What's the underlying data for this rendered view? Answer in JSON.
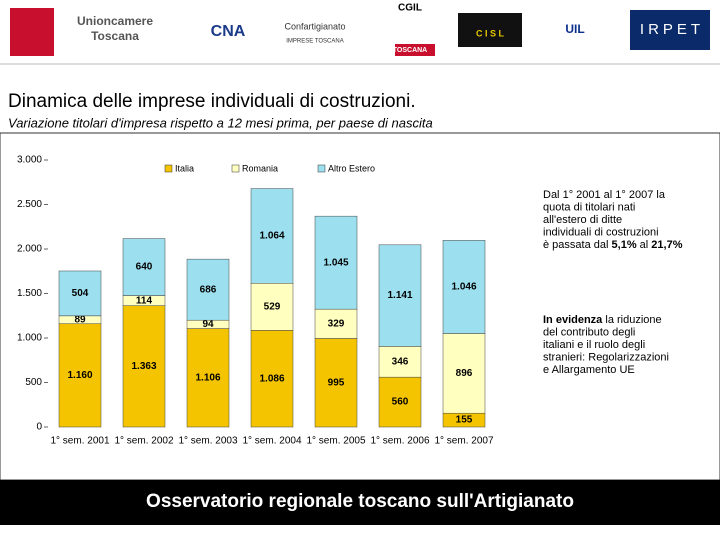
{
  "header": {
    "logos": [
      "Unioncamere",
      "Toscana",
      "CNA",
      "Confartigianato",
      "IMPRESE TOSCANA",
      "CGIL",
      "TOSCANA",
      "C I S L",
      "UIL",
      "IRPET"
    ],
    "title": "Dinamica delle imprese individuali di costruzioni.",
    "subtitle": "Variazione titolari d'impresa rispetto a 12 mesi prima, per paese di nascita"
  },
  "chart_data": {
    "type": "stacked-bar",
    "categories": [
      "1° sem. 2001",
      "1° sem. 2002",
      "1° sem. 2003",
      "1° sem. 2004",
      "1° sem. 2005",
      "1° sem. 2006",
      "1° sem. 2007"
    ],
    "series": [
      {
        "name": "Italia",
        "color": "#f5c400",
        "values": [
          1160,
          1363,
          1106,
          1086,
          995,
          560,
          155
        ],
        "value_labels": [
          "1.160",
          "1.363",
          "1.106",
          "1.086",
          "995",
          "560",
          "155"
        ]
      },
      {
        "name": "Romania",
        "color": "#ffffc0",
        "values": [
          89,
          114,
          94,
          529,
          329,
          346,
          896
        ],
        "value_labels": [
          "89",
          "114",
          "94",
          "529",
          "329",
          "346",
          "896"
        ]
      },
      {
        "name": "Altro Estero",
        "color": "#9ce0f0",
        "values": [
          504,
          640,
          686,
          1064,
          1045,
          1141,
          1046
        ],
        "value_labels": [
          "504",
          "640",
          "686",
          "1.064",
          "1.045",
          "1.141",
          "1.046"
        ]
      }
    ],
    "ylim": [
      0,
      3000
    ],
    "yticks": [
      0,
      500,
      {
        "value": 1000,
        "label": "1.000"
      },
      {
        "value": 1500,
        "label": "1.500"
      },
      {
        "value": 2000,
        "label": "2.000"
      },
      {
        "value": 2500,
        "label": "2.500"
      },
      {
        "value": 3000,
        "label": "3.000"
      }
    ],
    "grid": false
  },
  "notes": [
    {
      "parts": [
        {
          "text": "Dal 1° 2001 al 1° 2007 la quota di titolari nati all'estero di ditte individuali di costruzioni è passata dal ",
          "bold": false
        },
        {
          "text": "5,1%",
          "bold": true
        },
        {
          "text": " al ",
          "bold": false
        },
        {
          "text": "21,7%",
          "bold": true
        }
      ]
    },
    {
      "parts": [
        {
          "text": "In evidenza",
          "bold": true
        },
        {
          "text": " la riduzione del contributo degli italiani e il ruolo degli stranieri: Regolarizzazioni e Allargamento UE",
          "bold": false
        }
      ]
    }
  ],
  "footer": {
    "text": "Osservatorio regionale toscano sull'Artigianato"
  }
}
